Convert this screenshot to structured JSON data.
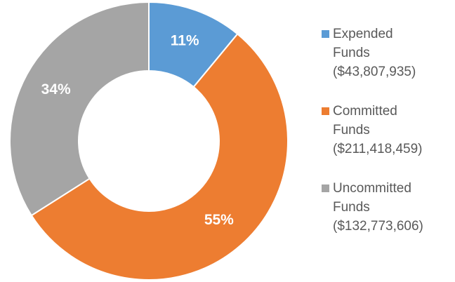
{
  "chart_data": {
    "type": "pie",
    "categories": [
      "Expended Funds ($43,807,935)",
      "Committed Funds ($211,418,459)",
      "Uncommitted Funds ($132,773,606)"
    ],
    "values": [
      11,
      55,
      34
    ],
    "value_labels": [
      "11%",
      "55%",
      "34%"
    ],
    "colors": [
      "#5b9bd5",
      "#ed7d31",
      "#a5a5a5"
    ],
    "donut": true,
    "legend": "right"
  }
}
